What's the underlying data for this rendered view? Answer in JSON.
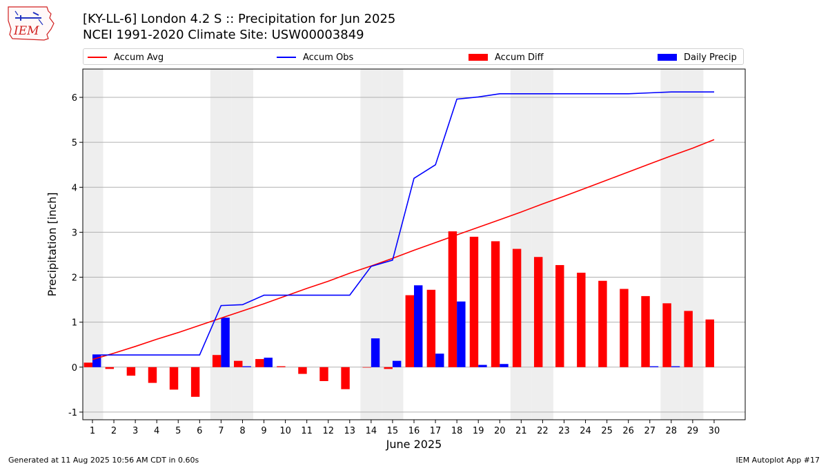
{
  "title_line1": "[KY-LL-6] London 4.2 S :: Precipitation for Jun 2025",
  "title_line2": "NCEI 1991-2020 Climate Site: USW00003849",
  "logo_text": "IEM",
  "footer_left": "Generated at 11 Aug 2025 10:56 AM CDT in 0.60s",
  "footer_right": "IEM Autoplot App #17",
  "colors": {
    "avg": "#ff0000",
    "obs": "#0000ff",
    "diff": "#ff0000",
    "daily": "#0000ff",
    "weekend": "#eeeeee",
    "grid": "#b0b0b0"
  },
  "legend": [
    {
      "label": "Accum Avg",
      "kind": "line",
      "color": "#ff0000"
    },
    {
      "label": "Accum Obs",
      "kind": "line",
      "color": "#0000ff"
    },
    {
      "label": "Accum Diff",
      "kind": "patch",
      "color": "#ff0000"
    },
    {
      "label": "Daily Precip",
      "kind": "patch",
      "color": "#0000ff"
    }
  ],
  "chart_data": {
    "type": "bar",
    "xlabel": "June 2025",
    "ylabel": "Precipitation [inch]",
    "ylim": [
      -1.17,
      6.63
    ],
    "yticks": [
      -1,
      0,
      1,
      2,
      3,
      4,
      5,
      6
    ],
    "grid": true,
    "legend_position": "top",
    "days": [
      1,
      2,
      3,
      4,
      5,
      6,
      7,
      8,
      9,
      10,
      11,
      12,
      13,
      14,
      15,
      16,
      17,
      18,
      19,
      20,
      21,
      22,
      23,
      24,
      25,
      26,
      27,
      28,
      29,
      30
    ],
    "weekend_days": [
      1,
      7,
      8,
      14,
      15,
      21,
      22,
      28,
      29
    ],
    "series": [
      {
        "name": "Accum Avg",
        "kind": "line",
        "values": [
          0.17,
          0.31,
          0.46,
          0.62,
          0.77,
          0.93,
          1.09,
          1.25,
          1.41,
          1.58,
          1.75,
          1.91,
          2.09,
          2.25,
          2.42,
          2.6,
          2.77,
          2.94,
          3.11,
          3.28,
          3.45,
          3.63,
          3.8,
          3.98,
          4.16,
          4.34,
          4.52,
          4.7,
          4.87,
          5.06
        ]
      },
      {
        "name": "Accum Obs",
        "kind": "line",
        "values": [
          0.27,
          0.27,
          0.27,
          0.27,
          0.27,
          0.27,
          1.37,
          1.39,
          1.6,
          1.6,
          1.6,
          1.6,
          1.6,
          2.24,
          2.38,
          4.2,
          4.5,
          5.96,
          6.01,
          6.08,
          6.08,
          6.08,
          6.08,
          6.08,
          6.08,
          6.08,
          6.1,
          6.12,
          6.12,
          6.12
        ]
      },
      {
        "name": "Accum Diff",
        "kind": "bar",
        "values": [
          0.1,
          -0.04,
          -0.19,
          -0.35,
          -0.5,
          -0.66,
          0.27,
          0.14,
          0.18,
          0.02,
          -0.15,
          -0.31,
          -0.49,
          -0.01,
          -0.04,
          1.6,
          1.72,
          3.02,
          2.9,
          2.8,
          2.63,
          2.45,
          2.27,
          2.1,
          1.92,
          1.74,
          1.58,
          1.42,
          1.25,
          1.06
        ]
      },
      {
        "name": "Daily Precip",
        "kind": "bar",
        "values": [
          0.27,
          0.0,
          0.0,
          0.0,
          0.0,
          0.0,
          1.1,
          0.02,
          0.21,
          0.0,
          0.0,
          0.0,
          0.0,
          0.64,
          0.14,
          1.82,
          0.3,
          1.46,
          0.05,
          0.07,
          0.0,
          0.0,
          0.0,
          0.0,
          0.0,
          0.0,
          0.02,
          0.02,
          0.0,
          0.0
        ]
      }
    ]
  }
}
